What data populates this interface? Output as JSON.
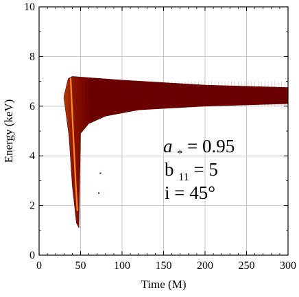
{
  "chart_data": {
    "type": "heatmap",
    "title": "",
    "xlabel": "Time (M)",
    "ylabel": "Energy (keV)",
    "xlim": [
      0,
      300
    ],
    "ylim": [
      0,
      10
    ],
    "xticks": [
      0,
      50,
      100,
      150,
      200,
      250,
      300
    ],
    "yticks": [
      0,
      2,
      4,
      6,
      8,
      10
    ],
    "grid": true,
    "colormap": [
      "#6b0000",
      "#8a1500",
      "#b83a00",
      "#ff8c1a"
    ],
    "annotations": {
      "param_a_symbol": "a",
      "param_a_sub": "*",
      "param_a_value": " = 0.95",
      "param_b_symbol": "b",
      "param_b_sub": "11",
      "param_b_value": " = 5",
      "param_i": "i = 45°"
    },
    "region": {
      "onset_time": 30,
      "peak": {
        "time": 38,
        "energy": 7.2
      },
      "min_energy": {
        "time": 48,
        "energy": 1.1
      },
      "lower_envelope": [
        {
          "time": 30,
          "energy": 6.3
        },
        {
          "time": 36,
          "energy": 4.8
        },
        {
          "time": 40,
          "energy": 2.8
        },
        {
          "time": 45,
          "energy": 1.3
        },
        {
          "time": 48,
          "energy": 1.1
        },
        {
          "time": 50,
          "energy": 4.9
        },
        {
          "time": 60,
          "energy": 5.3
        },
        {
          "time": 80,
          "energy": 5.6
        },
        {
          "time": 120,
          "energy": 5.85
        },
        {
          "time": 200,
          "energy": 6.0
        },
        {
          "time": 300,
          "energy": 6.1
        }
      ],
      "upper_envelope": [
        {
          "time": 30,
          "energy": 6.4
        },
        {
          "time": 35,
          "energy": 7.1
        },
        {
          "time": 40,
          "energy": 7.2
        },
        {
          "time": 100,
          "energy": 7.05
        },
        {
          "time": 200,
          "energy": 6.85
        },
        {
          "time": 300,
          "energy": 6.75
        }
      ],
      "hot_line": [
        {
          "time": 38,
          "energy": 7.1
        },
        {
          "time": 41,
          "energy": 5.0
        },
        {
          "time": 44,
          "energy": 3.0
        },
        {
          "time": 46,
          "energy": 1.8
        }
      ],
      "specks": [
        {
          "time": 74,
          "energy": 3.3
        },
        {
          "time": 72,
          "energy": 2.5
        }
      ]
    }
  }
}
